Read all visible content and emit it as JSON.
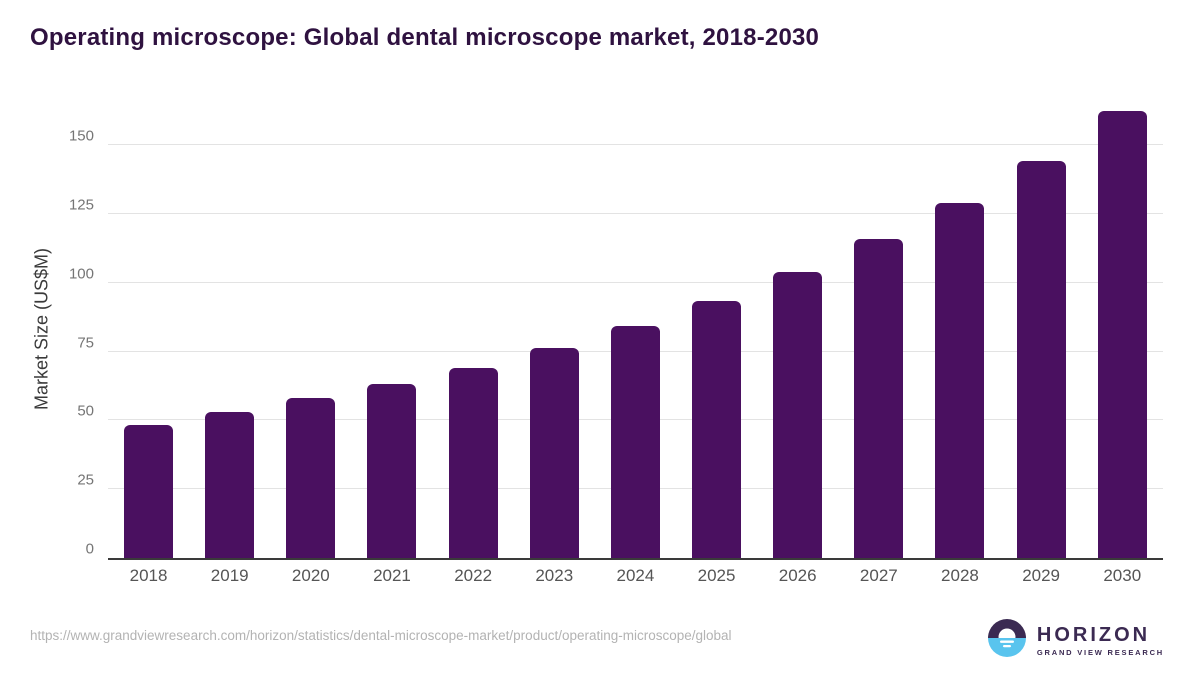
{
  "title": "Operating microscope: Global dental microscope market, 2018-2030",
  "chart_data": {
    "type": "bar",
    "categories": [
      "2018",
      "2019",
      "2020",
      "2021",
      "2022",
      "2023",
      "2024",
      "2025",
      "2026",
      "2027",
      "2028",
      "2029",
      "2030"
    ],
    "values": [
      48.2,
      53.2,
      58.1,
      63.4,
      69.0,
      76.4,
      84.3,
      93.4,
      104.0,
      115.8,
      129.2,
      144.5,
      162.4
    ],
    "title": "Operating microscope: Global dental microscope market, 2018-2030",
    "xlabel": "",
    "ylabel": "Market Size (US$M)",
    "yticks": [
      0,
      25,
      50,
      75,
      100,
      125,
      150
    ],
    "ylim": [
      0,
      166.5
    ],
    "grid": "horizontal",
    "legend": "none",
    "bar_color": "#4a1060"
  },
  "footer": {
    "url": "https://www.grandviewresearch.com/horizon/statistics/dental-microscope-market/product/operating-microscope/global"
  },
  "logo": {
    "name": "HORIZON",
    "subtitle": "GRAND VIEW RESEARCH",
    "purple": "#3b2a52",
    "blue": "#59c4ee"
  },
  "colors": {
    "bar": "#4a1060",
    "title_text": "#2f1240",
    "tick_text": "#757575",
    "x_label_text": "#555555",
    "gridline": "#e3e3e3",
    "axis_line": "#3a3a3a",
    "footer_text": "#b3b3b3"
  }
}
